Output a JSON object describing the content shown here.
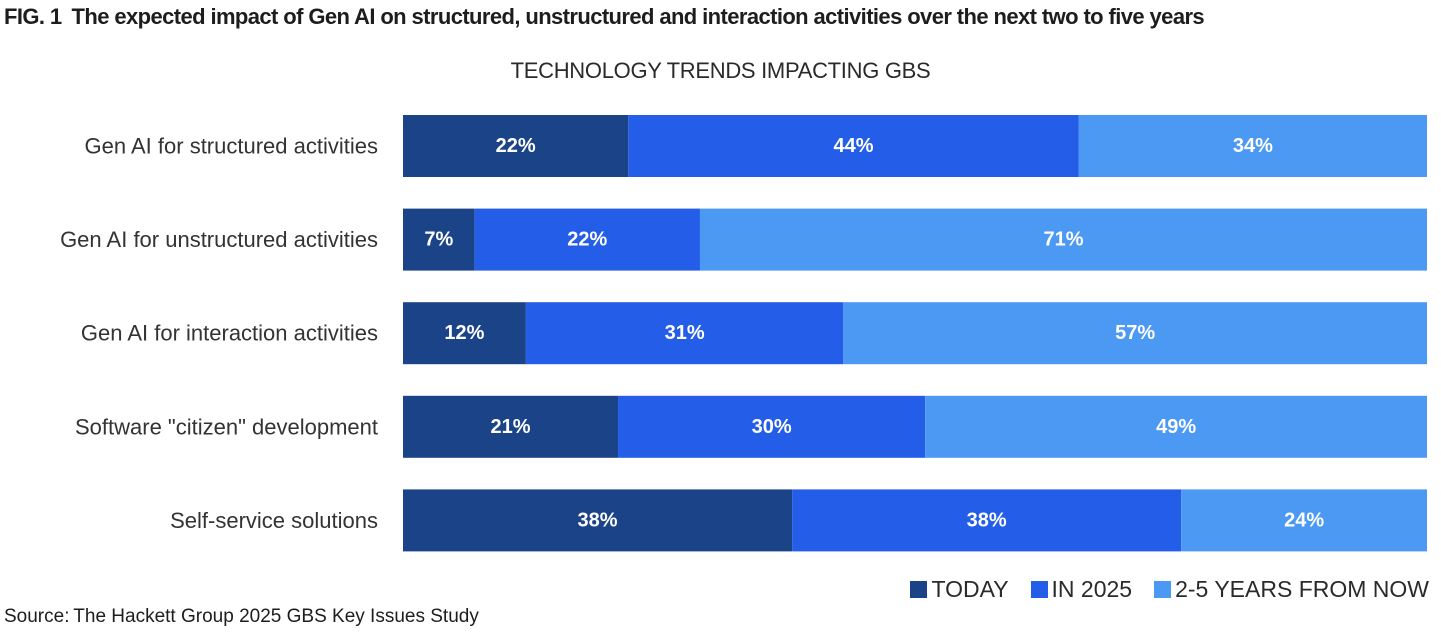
{
  "figure": {
    "number": "FIG. 1",
    "title": "The expected impact of Gen AI on structured, unstructured and interaction activities over the next two to five years"
  },
  "source": "Source: The Hackett Group 2025 GBS Key Issues Study",
  "chart_data": {
    "type": "bar",
    "orientation": "horizontal",
    "stacked": true,
    "normalized": true,
    "title": "TECHNOLOGY TRENDS IMPACTING GBS",
    "xlabel": "",
    "ylabel": "",
    "xlim": [
      0,
      100
    ],
    "grid": false,
    "legend_position": "bottom-right",
    "categories": [
      "Gen AI for structured activities",
      "Gen AI for unstructured activities",
      "Gen AI for interaction activities",
      "Software \"citizen\" development",
      "Self-service solutions"
    ],
    "series": [
      {
        "name": "TODAY",
        "color": "#1b4488",
        "values": [
          22,
          7,
          12,
          21,
          38
        ]
      },
      {
        "name": "IN 2025",
        "color": "#245de8",
        "values": [
          44,
          22,
          31,
          30,
          38
        ]
      },
      {
        "name": "2-5 YEARS FROM NOW",
        "color": "#4c99f4",
        "values": [
          34,
          71,
          57,
          49,
          24
        ]
      }
    ],
    "value_suffix": "%"
  }
}
